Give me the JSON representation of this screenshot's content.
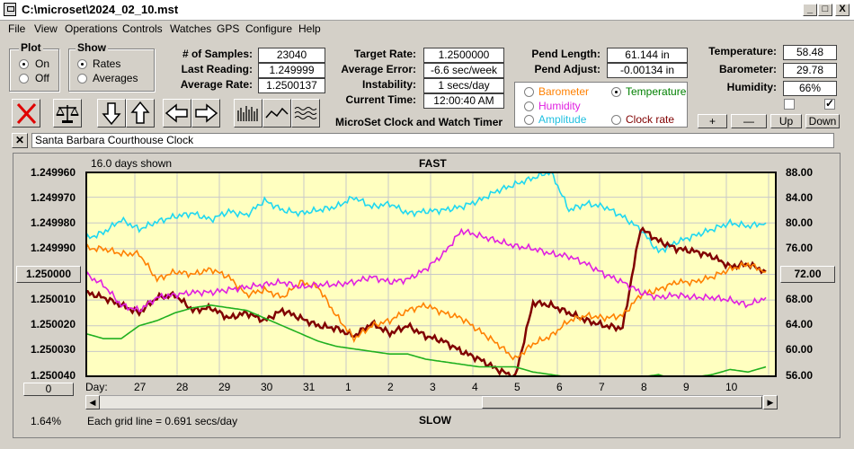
{
  "window": {
    "title": "C:\\microset\\2024_02_10.mst"
  },
  "menu": [
    "File",
    "View",
    "Operations",
    "Controls",
    "Watches",
    "GPS",
    "Configure",
    "Help"
  ],
  "plot": {
    "title": "Plot",
    "options": [
      "On",
      "Off"
    ],
    "selected": "On"
  },
  "show": {
    "title": "Show",
    "options": [
      "Rates",
      "Averages"
    ],
    "selected": "Rates"
  },
  "stats": {
    "samples_label": "# of Samples:",
    "samples": "23040",
    "last_label": "Last Reading:",
    "last": "1.249999",
    "avg_rate_label": "Average Rate:",
    "avg_rate": "1.2500137",
    "target_label": "Target Rate:",
    "target": "1.2500000",
    "avg_error_label": "Average Error:",
    "avg_error": "-6.6 sec/week",
    "instability_label": "Instability:",
    "instability": "1 secs/day",
    "current_time_label": "Current Time:",
    "current_time": "12:00:40 AM",
    "pend_length_label": "Pend Length:",
    "pend_length": "61.144 in",
    "pend_adjust_label": "Pend Adjust:",
    "pend_adjust": "-0.00134 in",
    "temperature_label": "Temperature:",
    "temperature": "58.48",
    "barometer_label": "Barometer:",
    "barometer": "29.78",
    "humidity_label": "Humidity:",
    "humidity": "66%"
  },
  "app_name": "MicroSet Clock and Watch Timer",
  "overlay": {
    "options": [
      {
        "label": "Barometer",
        "color": "#ff8000",
        "selected": false
      },
      {
        "label": "Temperature",
        "color": "#008000",
        "selected": true
      },
      {
        "label": "Humidity",
        "color": "#e020e0",
        "selected": false
      },
      {
        "label": "Clock rate",
        "color": "#800000",
        "selected": false
      },
      {
        "label": "Amplitude",
        "color": "#20c8e8",
        "selected": false
      }
    ]
  },
  "scale_buttons": [
    "+",
    "—",
    "Up",
    "Down"
  ],
  "clock_name": "Santa Barbara Courthouse Clock",
  "chart": {
    "days_shown": "16.0 days shown",
    "top_label": "FAST",
    "bottom_label": "SLOW",
    "grid_note": "Each grid line = 0.691 secs/day",
    "percent": "1.64%",
    "center_value": "1.250000",
    "left_ticks": [
      "1.249960",
      "1.249970",
      "1.249980",
      "1.249990",
      "1.250000",
      "1.250010",
      "1.250020",
      "1.250030",
      "1.250040"
    ],
    "right_ticks": [
      "88.00",
      "84.00",
      "80.00",
      "76.00",
      "72.00",
      "68.00",
      "64.00",
      "60.00",
      "56.00"
    ],
    "right_center": "72.00",
    "offset_button": "0",
    "day_prefix": "Day:",
    "days": [
      "27",
      "28",
      "29",
      "30",
      "31",
      "1",
      "2",
      "3",
      "4",
      "5",
      "6",
      "7",
      "8",
      "9",
      "10"
    ]
  },
  "chart_data": {
    "type": "line",
    "x_label": "Day",
    "x_ticks": [
      "27",
      "28",
      "29",
      "30",
      "31",
      "1",
      "2",
      "3",
      "4",
      "5",
      "6",
      "7",
      "8",
      "9",
      "10"
    ],
    "ylim_left": [
      1.24996,
      1.25004
    ],
    "ylim_right": [
      56,
      88
    ],
    "grid": true,
    "series": [
      {
        "name": "Amplitude",
        "color": "#20d8f0",
        "values": [
          77.5,
          78.5,
          80.5,
          79,
          80.2,
          81,
          81.5,
          80.5,
          81.8,
          81.2,
          83.5,
          82,
          81.5,
          82,
          82.5,
          84,
          82.5,
          83,
          81.5,
          81.8,
          82,
          82.5,
          83.5,
          85,
          86,
          87,
          88,
          82,
          83,
          82.5,
          81,
          79,
          75.5,
          77,
          78,
          79,
          80,
          79.5,
          80
        ]
      },
      {
        "name": "Clock rate",
        "color": "#800000",
        "values": [
          1.250007,
          1.250009,
          1.250012,
          1.250015,
          1.250009,
          1.250008,
          1.250014,
          1.250013,
          1.250017,
          1.250015,
          1.250018,
          1.250014,
          1.250017,
          1.25002,
          1.250021,
          1.250024,
          1.250019,
          1.250023,
          1.25002,
          1.250024,
          1.250026,
          1.25003,
          1.250033,
          1.250037,
          1.25004,
          1.250011,
          1.250012,
          1.250015,
          1.250018,
          1.25002,
          1.250021,
          1.249982,
          1.249987,
          1.24999,
          1.249991,
          1.249993,
          1.249997,
          1.249996,
          1.249999
        ]
      },
      {
        "name": "Barometer",
        "color": "#ff8000",
        "values": [
          1.24999,
          1.24999,
          1.249992,
          1.249992,
          1.250002,
          1.249999,
          1.25,
          1.249998,
          1.250001,
          1.250008,
          1.250006,
          1.250009,
          1.250003,
          1.250005,
          1.250016,
          1.250025,
          1.25002,
          1.250018,
          1.250014,
          1.250012,
          1.250015,
          1.250017,
          1.250022,
          1.250027,
          1.250033,
          1.250027,
          1.250024,
          1.250018,
          1.250016,
          1.250017,
          1.250016,
          1.250008,
          1.250006,
          1.250003,
          1.250003,
          1.250001,
          1.249998,
          1.249996,
          1.249999
        ]
      },
      {
        "name": "Humidity",
        "color": "#e020e0",
        "values": [
          1.25,
          1.250004,
          1.250012,
          1.250014,
          1.250009,
          1.250008,
          1.250007,
          1.250007,
          1.250006,
          1.250005,
          1.250004,
          1.250003,
          1.250005,
          1.250004,
          1.250004,
          1.250003,
          1.250001,
          1.250003,
          1.250002,
          1.249998,
          1.249992,
          1.249983,
          1.249985,
          1.249987,
          1.249989,
          1.24999,
          1.249992,
          1.249993,
          1.249996,
          1.25,
          1.250003,
          1.250007,
          1.250009,
          1.250008,
          1.250009,
          1.250009,
          1.25001,
          1.250012,
          1.250009
        ]
      },
      {
        "name": "Temperature",
        "color": "#20b020",
        "values": [
          1.250023,
          1.250025,
          1.250025,
          1.25002,
          1.250018,
          1.250015,
          1.250013,
          1.250012,
          1.250013,
          1.250014,
          1.250017,
          1.25002,
          1.250023,
          1.250026,
          1.250028,
          1.250029,
          1.25003,
          1.250031,
          1.250031,
          1.250033,
          1.250034,
          1.250035,
          1.250036,
          1.250036,
          1.250036,
          1.250038,
          1.250039,
          1.25004,
          1.25004,
          1.250041,
          1.250041,
          1.25004,
          1.250039,
          1.250041,
          1.25004,
          1.250039,
          1.250037,
          1.250038,
          1.250036
        ]
      }
    ]
  },
  "colors": {
    "chart_bg": "#ffffc0",
    "window_bg": "#d4d0c8"
  }
}
